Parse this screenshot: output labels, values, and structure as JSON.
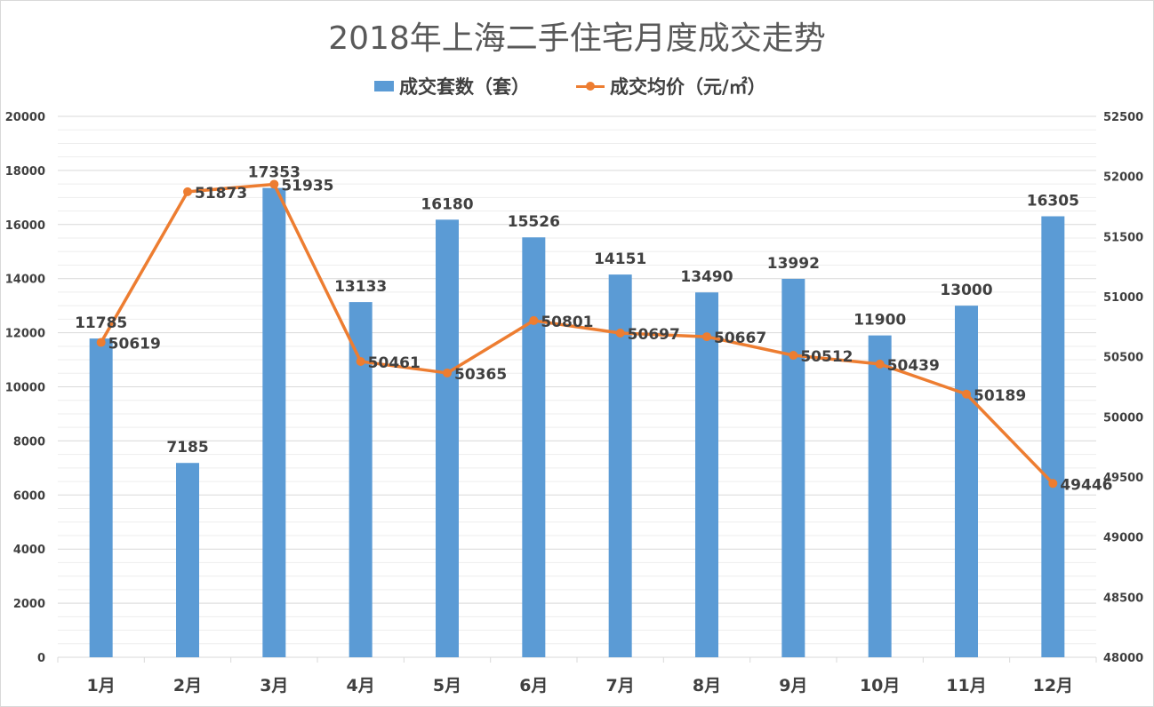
{
  "chart_data": {
    "type": "bar+line",
    "title": "2018年上海二手住宅月度成交走势",
    "categories": [
      "1月",
      "2月",
      "3月",
      "4月",
      "5月",
      "6月",
      "7月",
      "8月",
      "9月",
      "10月",
      "11月",
      "12月"
    ],
    "series": [
      {
        "name": "成交套数（套）",
        "type": "bar",
        "axis": "left",
        "color": "#5b9bd5",
        "values": [
          11785,
          7185,
          17353,
          13133,
          16180,
          15526,
          14151,
          13490,
          13992,
          11900,
          13000,
          16305
        ]
      },
      {
        "name": "成交均价（元/㎡）",
        "type": "line",
        "axis": "right",
        "color": "#ed7d31",
        "values": [
          50619,
          51873,
          51935,
          50461,
          50365,
          50801,
          50697,
          50667,
          50512,
          50439,
          50189,
          49446
        ]
      }
    ],
    "y_left": {
      "min": 0,
      "max": 20000,
      "step": 2000,
      "ticks": [
        "0",
        "2000",
        "4000",
        "6000",
        "8000",
        "10000",
        "12000",
        "14000",
        "16000",
        "18000",
        "20000"
      ]
    },
    "y_right": {
      "min": 48000,
      "max": 52500,
      "step": 500,
      "ticks": [
        "48000",
        "48500",
        "49000",
        "49500",
        "50000",
        "50500",
        "51000",
        "51500",
        "52000",
        "52500"
      ]
    },
    "grid": true,
    "legend": "top-center",
    "data_labels": true
  }
}
